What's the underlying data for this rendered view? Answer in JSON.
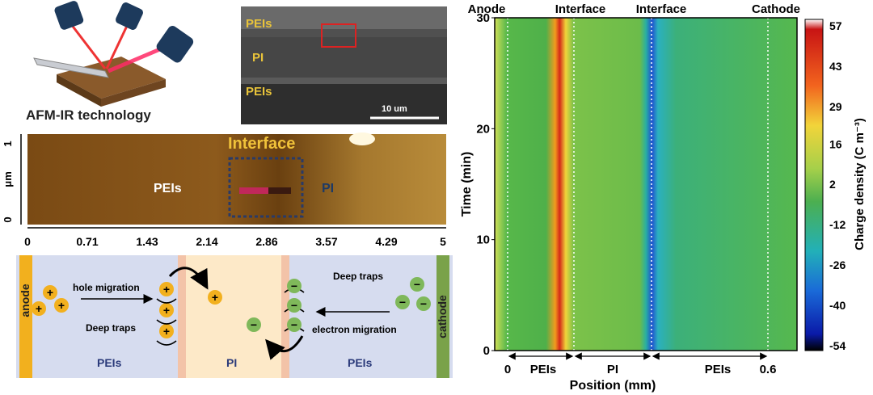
{
  "afm": {
    "caption": "AFM-IR technology"
  },
  "sem": {
    "layer_top": "PEIs",
    "layer_mid": "PI",
    "layer_bot": "PEIs",
    "scale_bar": "10 um"
  },
  "afm_scan": {
    "y_axis_label": "μm",
    "y_ticks": [
      "1",
      "0"
    ],
    "x_ticks": [
      "0",
      "0.71",
      "1.43",
      "2.14",
      "2.86",
      "3.57",
      "4.29",
      "5"
    ],
    "interface_label": "Interface",
    "left_label": "PEIs",
    "right_label": "PI"
  },
  "schematic": {
    "anode": "anode",
    "cathode": "cathode",
    "hole_migration": "hole migration",
    "deep_traps_left": "Deep traps",
    "deep_traps_right": "Deep traps",
    "electron_migration": "electron migration",
    "region_left": "PEIs",
    "region_mid": "PI",
    "region_right": "PEIs",
    "plus": "+",
    "minus": "−"
  },
  "chart_data": {
    "type": "heatmap",
    "xlabel": "Position (mm)",
    "ylabel": "Time (min)",
    "colorbar_label": "Charge density (C m⁻³)",
    "x_range": [
      0,
      0.6
    ],
    "ylim": [
      0,
      30
    ],
    "y_ticks": [
      0,
      10,
      20,
      30
    ],
    "x_tick_labels": [
      "0",
      "0.6"
    ],
    "top_labels": [
      "Anode",
      "Interface",
      "Interface",
      "Cathode"
    ],
    "region_labels": [
      "PEIs",
      "PI",
      "PEIs"
    ],
    "colorbar_ticks": [
      57,
      43,
      29,
      16,
      2,
      -12,
      -26,
      -40,
      -54
    ],
    "clim": [
      -54,
      57
    ]
  }
}
